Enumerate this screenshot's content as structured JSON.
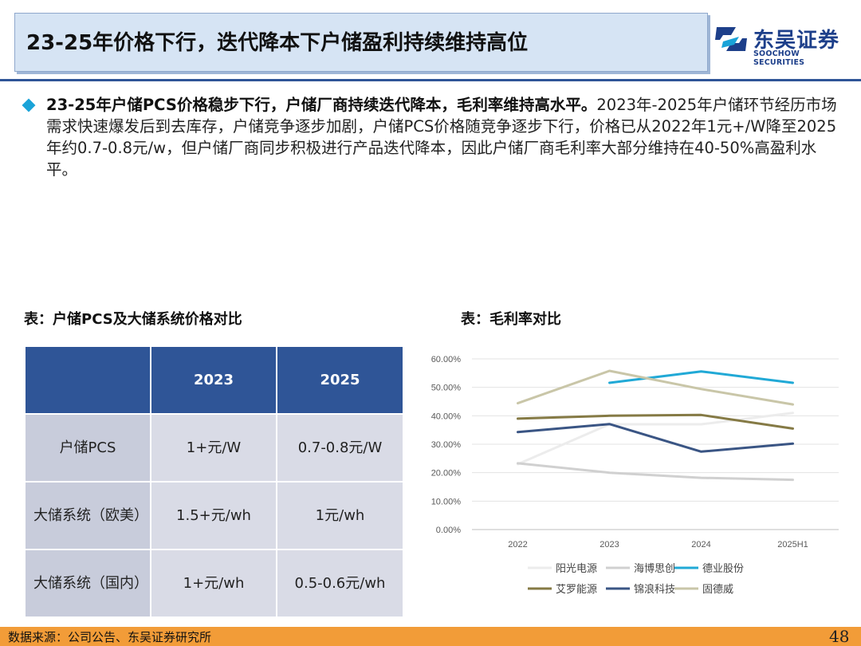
{
  "header": {
    "title": "23-25年价格下行，迭代降本下户储盈利持续维持高位",
    "logo_cn": "东吴证券",
    "logo_en": "SOOCHOW SECURITIES"
  },
  "bullet": {
    "bold": "23-25年户储PCS价格稳步下行，户储厂商持续迭代降本，毛利率维持高水平。",
    "text": "2023年-2025年户储环节经历市场需求快速爆发后到去库存，户储竞争逐步加剧，户储PCS价格随竞争逐步下行，价格已从2022年1元+/W降至2025年约0.7-0.8元/w，但户储厂商同步积极进行产品迭代降本，因此户储厂商毛利率大部分维持在40-50%高盈利水平。"
  },
  "table": {
    "caption": "表：户储PCS及大储系统价格对比",
    "headers": [
      "",
      "2023",
      "2025"
    ],
    "rows": [
      [
        "户储PCS",
        "1+元/W",
        "0.7-0.8元/W"
      ],
      [
        "大储系统（欧美）",
        "1.5+元/wh",
        "1元/wh"
      ],
      [
        "大储系统（国内）",
        "1+元/wh",
        "0.5-0.6元/wh"
      ]
    ]
  },
  "chart_caption": "表：毛利率对比",
  "chart_data": {
    "type": "line",
    "categories": [
      "2022",
      "2023",
      "2024",
      "2025H1"
    ],
    "ylim": [
      0,
      60
    ],
    "yticks": [
      "0.00%",
      "10.00%",
      "20.00%",
      "30.00%",
      "40.00%",
      "50.00%",
      "60.00%"
    ],
    "grid": true,
    "legend_position": "bottom",
    "series": [
      {
        "name": "阳光电源",
        "color": "#ececec",
        "values": [
          23.0,
          37.0,
          37.0,
          41.0
        ]
      },
      {
        "name": "海博思创",
        "color": "#d0d0d0",
        "values": [
          23.3,
          20.0,
          18.2,
          17.5
        ]
      },
      {
        "name": "德业股份",
        "color": "#21a9d6",
        "values": [
          null,
          51.6,
          55.6,
          51.6
        ]
      },
      {
        "name": "艾罗能源",
        "color": "#857a45",
        "values": [
          39.0,
          40.0,
          40.3,
          35.5
        ]
      },
      {
        "name": "锦浪科技",
        "color": "#3a5584",
        "values": [
          34.3,
          37.1,
          27.4,
          30.2
        ]
      },
      {
        "name": "固德威",
        "color": "#c9c6a8",
        "values": [
          44.4,
          55.8,
          49.4,
          44.0
        ]
      }
    ]
  },
  "footer": {
    "source": "数据来源：公司公告、东吴证券研究所",
    "page": "48"
  }
}
